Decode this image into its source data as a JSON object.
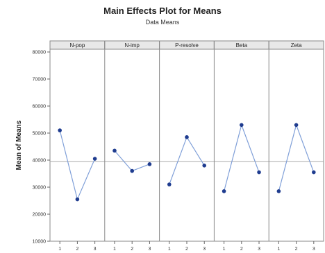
{
  "chart_data": {
    "type": "line",
    "title": "Main Effects Plot for Means",
    "subtitle": "Data Means",
    "ylabel": "Mean of Means",
    "xlabel": "",
    "ylim": [
      10000,
      80000
    ],
    "yticks": [
      10000,
      20000,
      30000,
      40000,
      50000,
      60000,
      70000,
      80000
    ],
    "ytick_labels": [
      "10000",
      "20000",
      "30000",
      "40000",
      "50000",
      "60000",
      "70000",
      "80000"
    ],
    "reference_line": 39500,
    "grid": false,
    "line_color": "#7f9fd8",
    "marker_color": "#1f3c8f",
    "levels": [
      "1",
      "2",
      "3"
    ],
    "panels": [
      {
        "name": "N-pop",
        "values": [
          51000,
          25500,
          40500
        ]
      },
      {
        "name": "N-imp",
        "values": [
          43500,
          36000,
          38500
        ]
      },
      {
        "name": "P-resolve",
        "values": [
          31000,
          48500,
          38000
        ]
      },
      {
        "name": "Beta",
        "values": [
          28500,
          53000,
          35500
        ]
      },
      {
        "name": "Zeta",
        "values": [
          28500,
          53000,
          35500
        ]
      }
    ]
  }
}
